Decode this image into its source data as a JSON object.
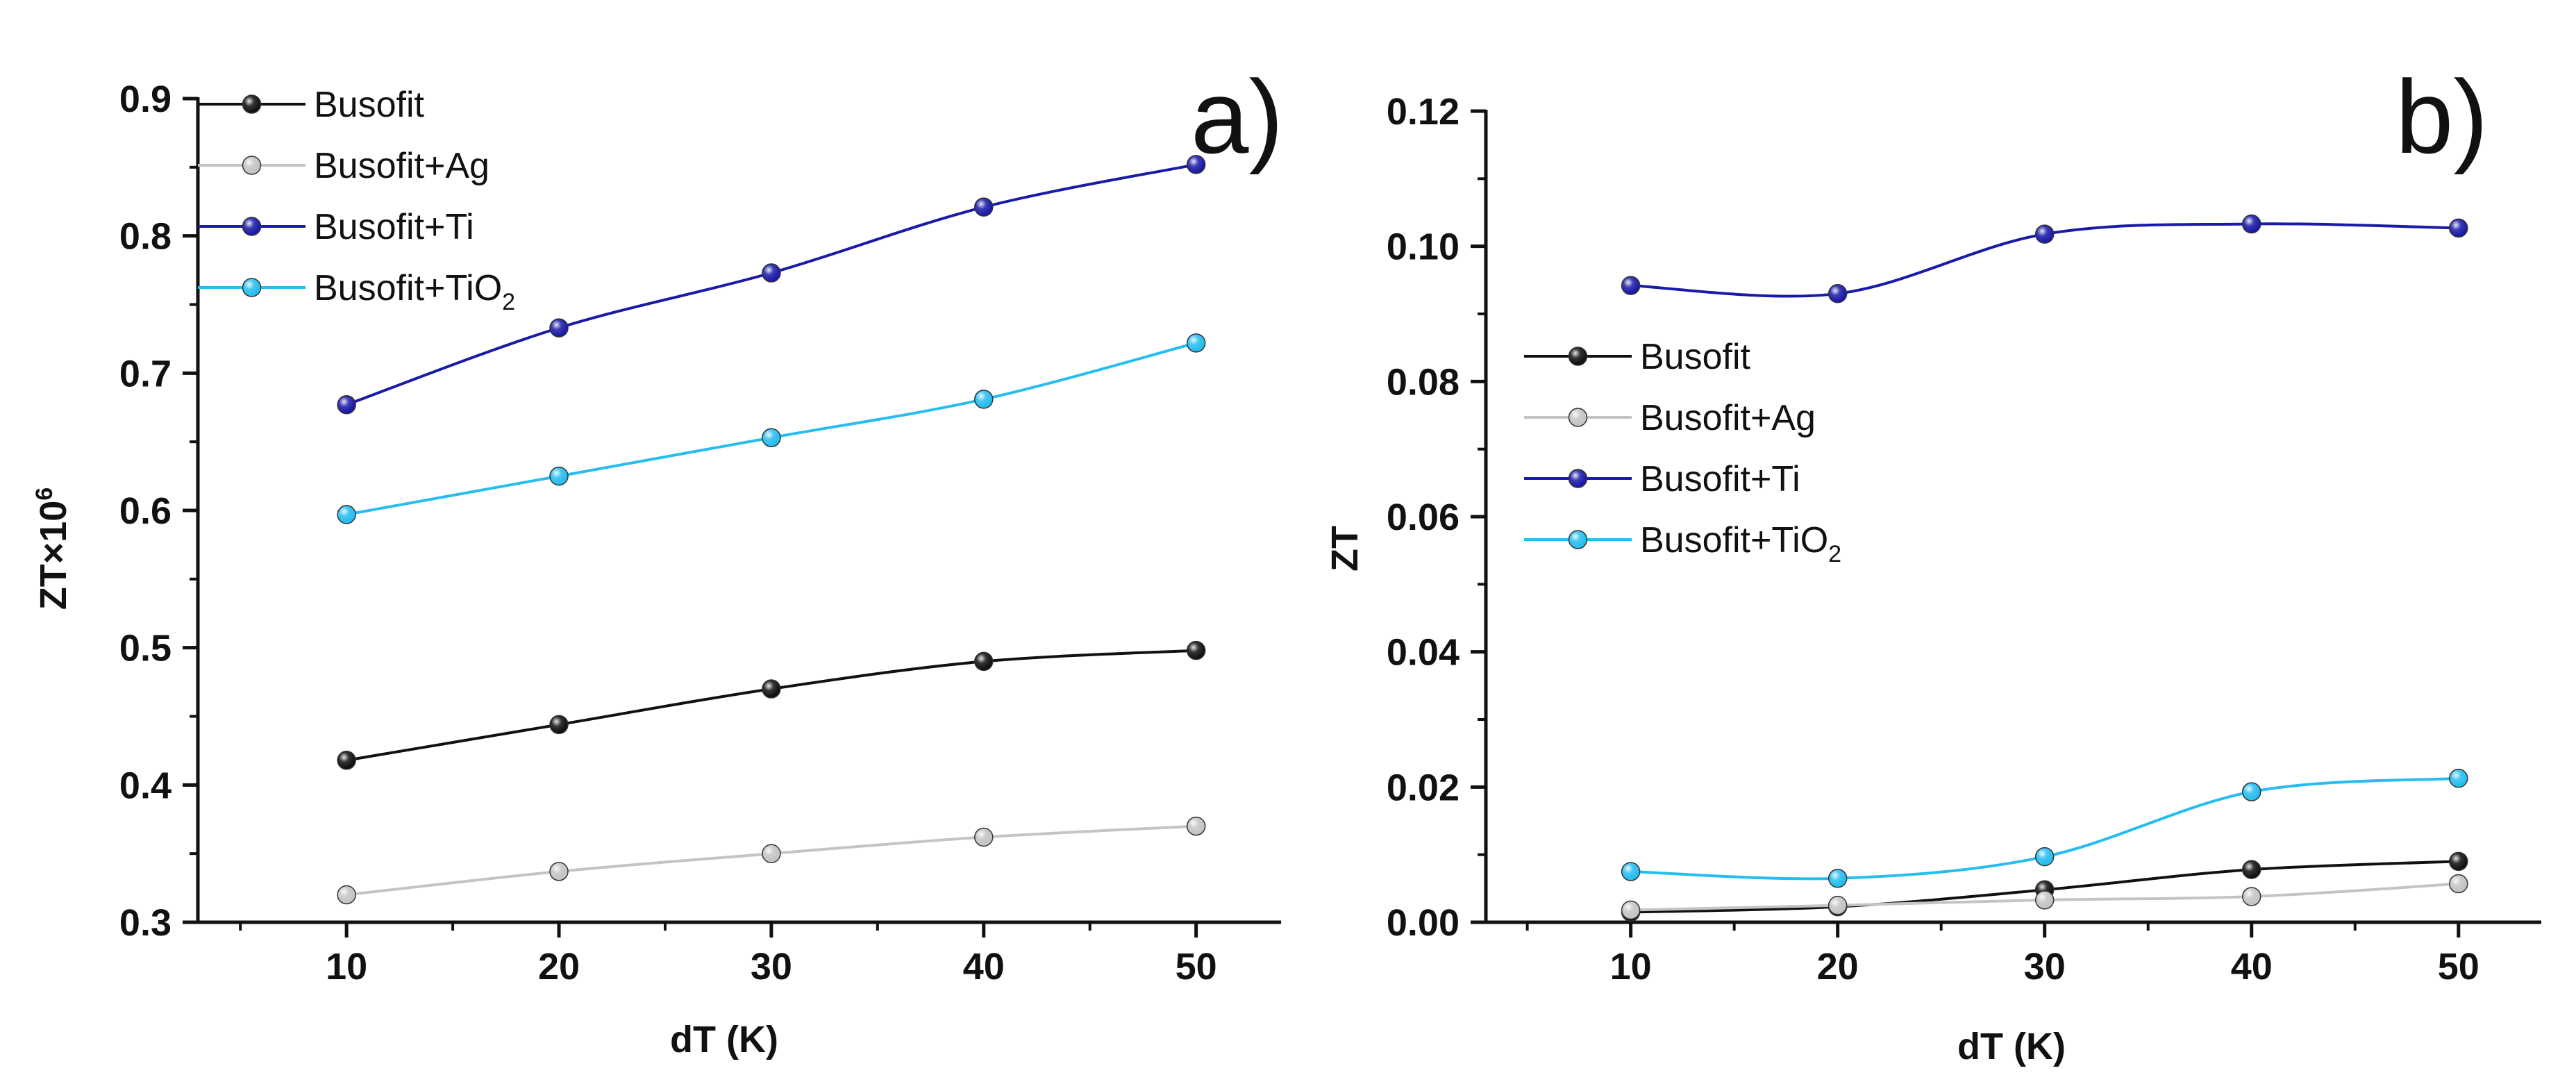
{
  "colors": {
    "Busofit": "#111111",
    "Busofit+Ag": "#c4c4c4",
    "Busofit+Ti": "#1a1aa8",
    "Busofit+TiO2": "#26bdf0"
  },
  "chart_data": [
    {
      "type": "line",
      "panel_label": "a)",
      "xlabel": "dT (K)",
      "ylabel": "ZT×10",
      "ylabel_sup": "6",
      "x": [
        10,
        20,
        30,
        40,
        50
      ],
      "xlim": [
        3,
        54
      ],
      "ylim": [
        0.3,
        0.9
      ],
      "xticks": [
        "10",
        "20",
        "30",
        "40",
        "50"
      ],
      "yticks": [
        "0.3",
        "0.4",
        "0.5",
        "0.6",
        "0.7",
        "0.8",
        "0.9"
      ],
      "grid": false,
      "legend_position": "top-left",
      "series": [
        {
          "name": "Busofit",
          "legend": "Busofit",
          "legend_sub": "",
          "values": [
            0.418,
            0.444,
            0.47,
            0.49,
            0.498
          ]
        },
        {
          "name": "Busofit+Ag",
          "legend": "Busofit+Ag",
          "legend_sub": "",
          "values": [
            0.32,
            0.337,
            0.35,
            0.362,
            0.37
          ]
        },
        {
          "name": "Busofit+Ti",
          "legend": "Busofit+Ti",
          "legend_sub": "",
          "values": [
            0.677,
            0.733,
            0.773,
            0.821,
            0.852
          ]
        },
        {
          "name": "Busofit+TiO2",
          "legend": "Busofit+TiO",
          "legend_sub": "2",
          "values": [
            0.597,
            0.625,
            0.653,
            0.681,
            0.722
          ]
        }
      ]
    },
    {
      "type": "line",
      "panel_label": "b)",
      "xlabel": "dT (K)",
      "ylabel": "ZT",
      "ylabel_sup": "",
      "x": [
        10,
        20,
        30,
        40,
        50
      ],
      "xlim": [
        3,
        54
      ],
      "ylim": [
        0,
        0.12
      ],
      "xticks": [
        "10",
        "20",
        "30",
        "40",
        "50"
      ],
      "yticks": [
        "0.00",
        "0.02",
        "0.04",
        "0.06",
        "0.08",
        "0.10",
        "0.12"
      ],
      "grid": false,
      "legend_position": "center-left",
      "series": [
        {
          "name": "Busofit",
          "legend": "Busofit",
          "legend_sub": "",
          "values": [
            0.0015,
            0.0023,
            0.0048,
            0.0078,
            0.009
          ]
        },
        {
          "name": "Busofit+Ag",
          "legend": "Busofit+Ag",
          "legend_sub": "",
          "values": [
            0.0018,
            0.0025,
            0.0033,
            0.0038,
            0.0057
          ]
        },
        {
          "name": "Busofit+Ti",
          "legend": "Busofit+Ti",
          "legend_sub": "",
          "values": [
            0.0942,
            0.093,
            0.1018,
            0.1033,
            0.1027
          ]
        },
        {
          "name": "Busofit+TiO2",
          "legend": "Busofit+TiO",
          "legend_sub": "2",
          "values": [
            0.0075,
            0.0065,
            0.0097,
            0.0193,
            0.0213
          ]
        }
      ]
    }
  ]
}
